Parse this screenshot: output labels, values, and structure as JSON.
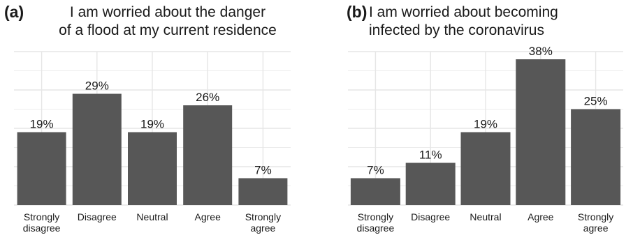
{
  "chart_data": [
    {
      "type": "bar",
      "panel_label": "(a)",
      "title": [
        "I am worried about the danger",
        "of a flood at my current residence"
      ],
      "categories": [
        [
          "Strongly",
          "disagree"
        ],
        [
          "Disagree"
        ],
        [
          "Neutral"
        ],
        [
          "Agree"
        ],
        [
          "Strongly",
          "agree"
        ]
      ],
      "values": [
        19,
        29,
        19,
        26,
        7
      ],
      "value_labels": [
        "19%",
        "29%",
        "19%",
        "26%",
        "7%"
      ],
      "ylim": [
        0,
        40
      ],
      "grid": true,
      "bar_color": "#575757",
      "grid_color": "#e6e6e6"
    },
    {
      "type": "bar",
      "panel_label": "(b)",
      "title": [
        "I am worried about becoming",
        "infected by the coronavirus"
      ],
      "categories": [
        [
          "Strongly",
          "disagree"
        ],
        [
          "Disagree"
        ],
        [
          "Neutral"
        ],
        [
          "Agree"
        ],
        [
          "Strongly",
          "agree"
        ]
      ],
      "values": [
        7,
        11,
        19,
        38,
        25
      ],
      "value_labels": [
        "7%",
        "11%",
        "19%",
        "38%",
        "25%"
      ],
      "ylim": [
        0,
        40
      ],
      "grid": true,
      "bar_color": "#575757",
      "grid_color": "#e6e6e6"
    }
  ]
}
